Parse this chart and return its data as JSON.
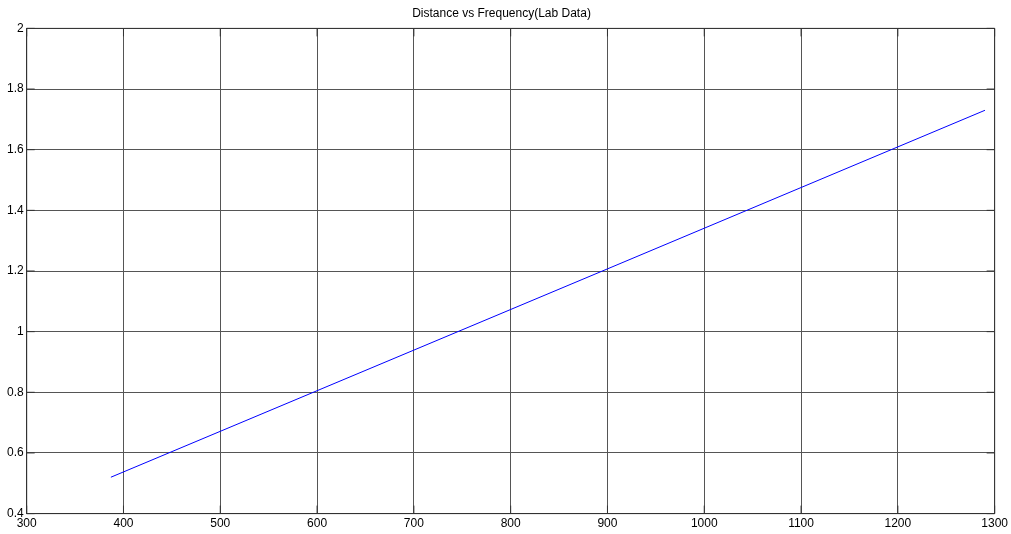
{
  "chart_data": {
    "type": "line",
    "title": "Distance vs Frequency(Lab Data)",
    "x": [
      387,
      900,
      1290
    ],
    "series": [
      {
        "color": "#0000ff",
        "values": [
          0.52,
          1.207,
          1.73
        ]
      }
    ],
    "xlim": [
      300,
      1300
    ],
    "xticks": [
      300,
      400,
      500,
      600,
      700,
      800,
      900,
      1000,
      1100,
      1200,
      1300
    ],
    "ylim": [
      0.4,
      2
    ],
    "yticks": [
      0.4,
      0.6,
      0.8,
      1,
      1.2,
      1.4,
      1.6,
      1.8,
      2
    ],
    "grid": true,
    "legend": false,
    "line_style": "solid",
    "marker": "none"
  }
}
